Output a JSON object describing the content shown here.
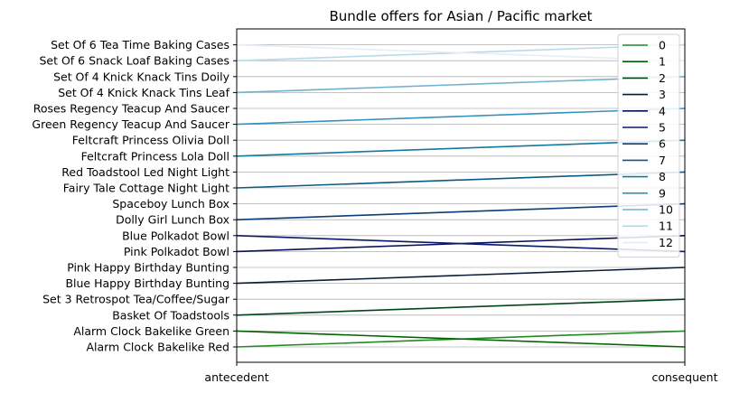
{
  "chart_data": {
    "type": "line",
    "title": "Bundle offers for Asian / Pacific market",
    "xlabel": "",
    "ylabel": "",
    "x": [
      "antecedent",
      "consequent"
    ],
    "y_categories": [
      "Alarm Clock Bakelike Red",
      "Alarm Clock Bakelike Green",
      "Basket Of Toadstools",
      "Set 3 Retrospot Tea/Coffee/Sugar",
      "Blue Happy Birthday Bunting",
      "Pink Happy Birthday Bunting",
      "Pink Polkadot Bowl",
      "Blue Polkadot Bowl",
      "Dolly Girl Lunch Box",
      "Spaceboy Lunch Box",
      "Fairy Tale Cottage Night Light",
      "Red Toadstool Led Night Light",
      "Feltcraft Princess Lola Doll",
      "Feltcraft Princess Olivia Doll",
      "Green Regency Teacup And Saucer",
      "Roses Regency Teacup And Saucer",
      "Set Of 4 Knick Knack Tins Leaf",
      "Set Of 4 Knick Knack Tins Doily",
      "Set Of 6 Snack Loaf Baking Cases",
      "Set Of 6 Tea Time Baking Cases"
    ],
    "grid": true,
    "legend_position": "upper right",
    "series": [
      {
        "name": "0",
        "color": "#228b22",
        "values": [
          "Alarm Clock Bakelike Red",
          "Alarm Clock Bakelike Green"
        ]
      },
      {
        "name": "1",
        "color": "#006400",
        "values": [
          "Alarm Clock Bakelike Green",
          "Alarm Clock Bakelike Red"
        ]
      },
      {
        "name": "2",
        "color": "#00441b",
        "values": [
          "Basket Of Toadstools",
          "Set 3 Retrospot Tea/Coffee/Sugar"
        ]
      },
      {
        "name": "3",
        "color": "#081d38",
        "values": [
          "Blue Happy Birthday Bunting",
          "Pink Happy Birthday Bunting"
        ]
      },
      {
        "name": "4",
        "color": "#08125a",
        "values": [
          "Pink Polkadot Bowl",
          "Blue Polkadot Bowl"
        ]
      },
      {
        "name": "5",
        "color": "#081a6b",
        "values": [
          "Blue Polkadot Bowl",
          "Pink Polkadot Bowl"
        ]
      },
      {
        "name": "6",
        "color": "#0b3d7a",
        "values": [
          "Dolly Girl Lunch Box",
          "Spaceboy Lunch Box"
        ]
      },
      {
        "name": "7",
        "color": "#0b5a86",
        "values": [
          "Fairy Tale Cottage Night Light",
          "Red Toadstool Led Night Light"
        ]
      },
      {
        "name": "8",
        "color": "#1479a0",
        "values": [
          "Feltcraft Princess Lola Doll",
          "Feltcraft Princess Olivia Doll"
        ]
      },
      {
        "name": "9",
        "color": "#3391bd",
        "values": [
          "Green Regency Teacup And Saucer",
          "Roses Regency Teacup And Saucer"
        ]
      },
      {
        "name": "10",
        "color": "#6fb2cf",
        "values": [
          "Set Of 4 Knick Knack Tins Leaf",
          "Set Of 4 Knick Knack Tins Doily"
        ]
      },
      {
        "name": "11",
        "color": "#b8dbe9",
        "values": [
          "Set Of 6 Snack Loaf Baking Cases",
          "Set Of 6 Tea Time Baking Cases"
        ]
      },
      {
        "name": "12",
        "color": "#e4eef8",
        "values": [
          "Set Of 6 Tea Time Baking Cases",
          "Set Of 6 Snack Loaf Baking Cases"
        ]
      }
    ]
  }
}
